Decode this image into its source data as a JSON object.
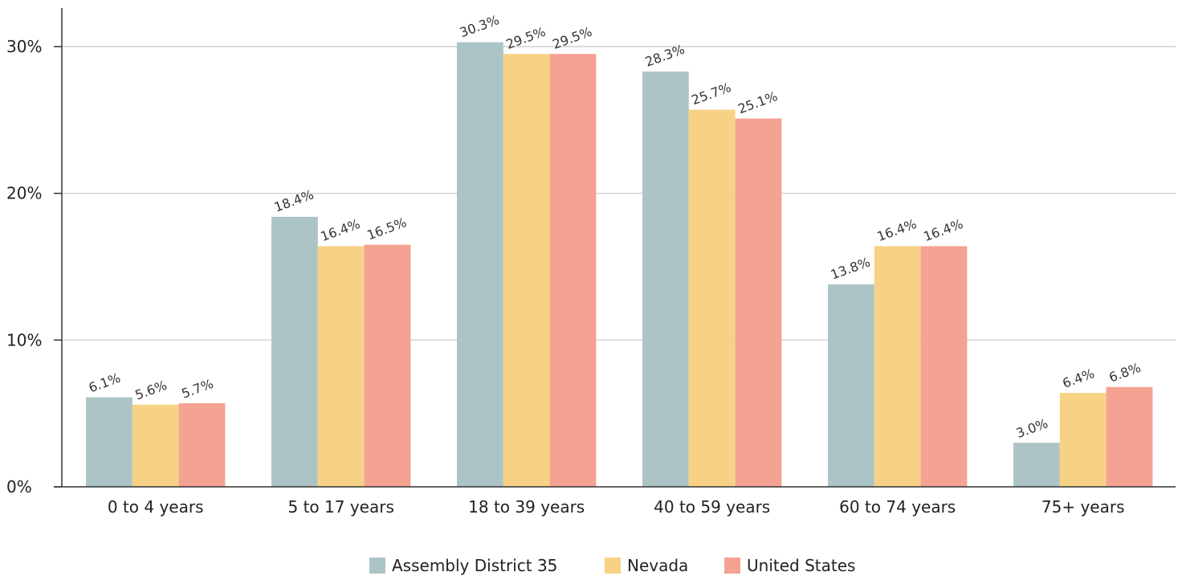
{
  "chart_data": {
    "type": "bar",
    "categories": [
      "0 to 4 years",
      "5 to 17 years",
      "18 to 39 years",
      "40 to 59 years",
      "60 to 74 years",
      "75+ years"
    ],
    "series": [
      {
        "name": "Assembly District 35",
        "color": "#adc4c6",
        "values": [
          6.1,
          18.4,
          30.3,
          28.3,
          13.8,
          3.0
        ],
        "labels": [
          "6.1%",
          "18.4%",
          "30.3%",
          "28.3%",
          "13.8%",
          "3.0%"
        ]
      },
      {
        "name": "Nevada",
        "color": "#f7d286",
        "values": [
          5.6,
          16.4,
          29.5,
          25.7,
          16.4,
          6.4
        ],
        "labels": [
          "5.6%",
          "16.4%",
          "29.5%",
          "25.7%",
          "16.4%",
          "6.4%"
        ]
      },
      {
        "name": "United States",
        "color": "#f4a292",
        "values": [
          5.7,
          16.5,
          29.5,
          25.1,
          16.4,
          6.8
        ],
        "labels": [
          "5.7%",
          "16.5%",
          "29.5%",
          "25.1%",
          "16.4%",
          "6.8%"
        ]
      }
    ],
    "yticks": [
      0,
      10,
      20,
      30
    ],
    "ytick_labels": [
      "0%",
      "10%",
      "20%",
      "30%"
    ],
    "ylim": [
      0,
      33
    ],
    "grid": true,
    "legend_position": "bottom"
  }
}
